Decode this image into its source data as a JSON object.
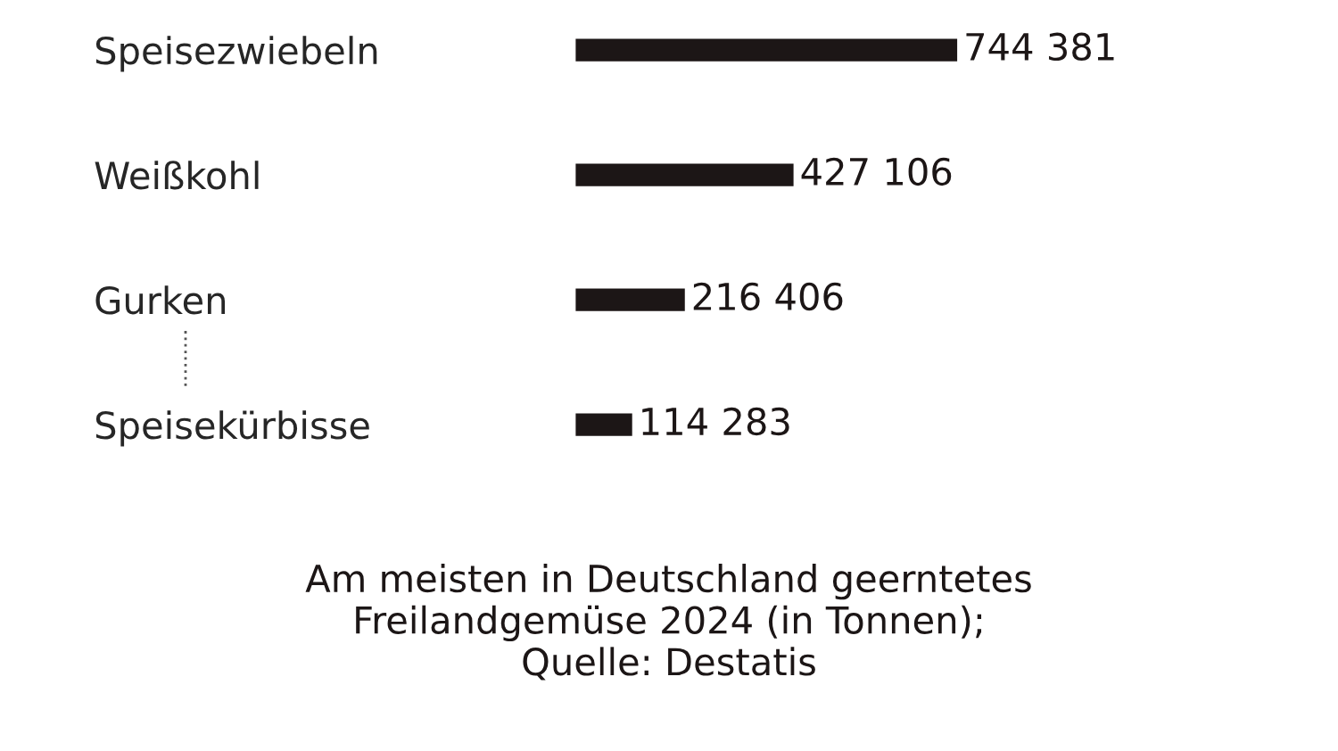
{
  "chart_data": {
    "type": "bar",
    "orientation": "horizontal",
    "categories": [
      "Speisezwiebeln",
      "Weißkohl",
      "Gurken",
      "Speisekürbisse"
    ],
    "values": [
      744381,
      427106,
      216406,
      114283
    ],
    "value_labels": [
      "744 381",
      "427 106",
      "216 406",
      "114 283"
    ],
    "color": "#1c1616",
    "tick_labels": "y",
    "grid": false,
    "legend": false,
    "annotations": [
      "Am meisten in Deutschland geerntetes\nFreilandgemüse 2024 (in Tonnen);\nQuelle: Destatis"
    ]
  }
}
